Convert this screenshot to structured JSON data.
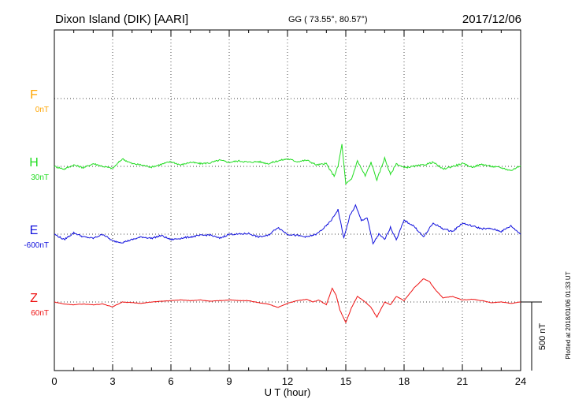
{
  "header": {
    "station": "Dixon Island (DIK)  [AARI]",
    "coords": "GG ( 73.55°,  80.57°)",
    "date": "2017/12/06"
  },
  "footer": {
    "plotted": "Plotted at 2018/01/06 01:33 UT"
  },
  "chart_data": {
    "type": "line",
    "xlabel": "U T (hour)",
    "xlim": [
      0,
      24
    ],
    "xticks": [
      "0",
      "3",
      "6",
      "9",
      "12",
      "15",
      "18",
      "21",
      "24"
    ],
    "grid": true,
    "scale_bar": {
      "label": "500 nT",
      "value": 500
    },
    "series": [
      {
        "name": "F",
        "offset": "0nT",
        "color": "#FFA500",
        "x": [],
        "y": []
      },
      {
        "name": "H",
        "offset": "30nT",
        "color": "#22DD22",
        "x": [
          0,
          0.5,
          1,
          1.5,
          2,
          2.5,
          3,
          3.5,
          4,
          4.5,
          5,
          5.5,
          6,
          6.5,
          7,
          7.5,
          8,
          8.5,
          9,
          9.5,
          10,
          10.5,
          11,
          11.5,
          12,
          12.5,
          13,
          13.5,
          14,
          14.2,
          14.4,
          14.6,
          14.8,
          15,
          15.3,
          15.6,
          16,
          16.3,
          16.6,
          17,
          17.3,
          17.6,
          18,
          18.5,
          19,
          19.5,
          20,
          20.5,
          21,
          21.5,
          22,
          22.5,
          23,
          23.5,
          24
        ],
        "y": [
          0,
          -20,
          10,
          -10,
          20,
          0,
          -15,
          55,
          20,
          10,
          -5,
          15,
          35,
          10,
          30,
          20,
          25,
          45,
          30,
          40,
          30,
          35,
          20,
          40,
          55,
          35,
          45,
          10,
          20,
          -30,
          -70,
          0,
          160,
          -130,
          -90,
          40,
          -70,
          30,
          -100,
          60,
          -60,
          20,
          -10,
          0,
          10,
          30,
          -20,
          0,
          20,
          -5,
          15,
          0,
          -10,
          -30,
          5
        ]
      },
      {
        "name": "E",
        "offset": "-600nT",
        "color": "#1111DD",
        "x": [
          0,
          0.5,
          1,
          1.5,
          2,
          2.5,
          3,
          3.5,
          4,
          4.5,
          5,
          5.5,
          6,
          6.5,
          7,
          7.5,
          8,
          8.5,
          9,
          9.5,
          10,
          10.5,
          11,
          11.5,
          12,
          12.5,
          13,
          13.5,
          14,
          14.3,
          14.6,
          14.9,
          15.2,
          15.5,
          15.8,
          16.1,
          16.4,
          16.7,
          17,
          17.3,
          17.6,
          18,
          18.5,
          19,
          19.5,
          20,
          20.5,
          21,
          21.5,
          22,
          22.5,
          23,
          23.5,
          24
        ],
        "y": [
          0,
          -40,
          10,
          -20,
          -30,
          0,
          -50,
          -60,
          -40,
          -20,
          -30,
          -10,
          -40,
          -30,
          -20,
          -10,
          -5,
          -30,
          0,
          0,
          5,
          -20,
          -10,
          50,
          0,
          -10,
          -20,
          0,
          60,
          110,
          180,
          -30,
          130,
          210,
          100,
          120,
          -70,
          0,
          -40,
          50,
          -40,
          100,
          60,
          -20,
          80,
          40,
          20,
          80,
          60,
          40,
          40,
          20,
          60,
          0
        ]
      },
      {
        "name": "Z",
        "offset": "60nT",
        "color": "#EE1111",
        "x": [
          0,
          0.5,
          1,
          1.5,
          2,
          2.5,
          3,
          3.5,
          4,
          4.5,
          5,
          5.5,
          6,
          6.5,
          7,
          7.5,
          8,
          8.5,
          9,
          9.5,
          10,
          10.5,
          11,
          11.5,
          12,
          12.5,
          13,
          13.3,
          13.6,
          14,
          14.3,
          14.5,
          14.7,
          15,
          15.3,
          15.6,
          16,
          16.3,
          16.6,
          17,
          17.3,
          17.6,
          18,
          18.5,
          19,
          19.3,
          19.6,
          20,
          20.5,
          21,
          21.5,
          22,
          22.5,
          23,
          23.5,
          24
        ],
        "y": [
          0,
          -15,
          -20,
          -15,
          -20,
          -15,
          -35,
          0,
          -5,
          -10,
          0,
          5,
          10,
          15,
          10,
          15,
          5,
          10,
          15,
          10,
          10,
          -5,
          -15,
          -40,
          -10,
          10,
          20,
          0,
          15,
          -20,
          100,
          50,
          -60,
          -150,
          -40,
          40,
          0,
          -40,
          -110,
          0,
          -20,
          40,
          10,
          100,
          170,
          150,
          90,
          30,
          40,
          15,
          20,
          10,
          -5,
          0,
          -10,
          0
        ]
      }
    ]
  }
}
